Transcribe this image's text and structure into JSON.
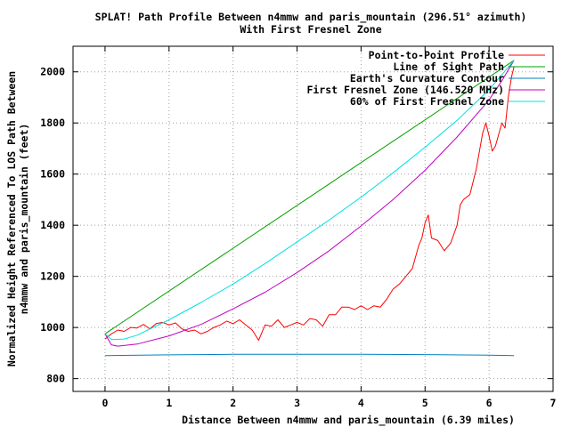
{
  "chart_data": {
    "type": "line",
    "title_line1": "SPLAT! Path Profile Between n4mmw and paris_mountain (296.51° azimuth)",
    "title_line2": "With First Fresnel Zone",
    "xlabel": "Distance Between n4mmw and paris_mountain (6.39 miles)",
    "ylabel_line1": "Normalized Height Referenced To LOS Path Between",
    "ylabel_line2": "n4mmw and paris_mountain (feet)",
    "xlim": [
      -0.5,
      7
    ],
    "ylim": [
      750,
      2100
    ],
    "x_ticks": [
      0,
      1,
      2,
      3,
      4,
      5,
      6,
      7
    ],
    "y_ticks": [
      800,
      1000,
      1200,
      1400,
      1600,
      1800,
      2000
    ],
    "grid": true,
    "legend_position": "top-right",
    "series": [
      {
        "name": "Point-to-Point Profile",
        "color": "#ff0000",
        "points": [
          [
            0,
            955
          ],
          [
            0.1,
            975
          ],
          [
            0.2,
            990
          ],
          [
            0.3,
            985
          ],
          [
            0.4,
            1000
          ],
          [
            0.5,
            998
          ],
          [
            0.6,
            1012
          ],
          [
            0.7,
            995
          ],
          [
            0.8,
            1015
          ],
          [
            0.9,
            1020
          ],
          [
            1.0,
            1010
          ],
          [
            1.1,
            1018
          ],
          [
            1.2,
            995
          ],
          [
            1.3,
            985
          ],
          [
            1.4,
            990
          ],
          [
            1.5,
            975
          ],
          [
            1.6,
            985
          ],
          [
            1.7,
            1000
          ],
          [
            1.8,
            1010
          ],
          [
            1.9,
            1025
          ],
          [
            2.0,
            1015
          ],
          [
            2.1,
            1030
          ],
          [
            2.2,
            1010
          ],
          [
            2.3,
            990
          ],
          [
            2.4,
            950
          ],
          [
            2.5,
            1010
          ],
          [
            2.6,
            1005
          ],
          [
            2.7,
            1030
          ],
          [
            2.8,
            1000
          ],
          [
            2.9,
            1010
          ],
          [
            3.0,
            1020
          ],
          [
            3.1,
            1010
          ],
          [
            3.2,
            1035
          ],
          [
            3.3,
            1030
          ],
          [
            3.4,
            1005
          ],
          [
            3.5,
            1050
          ],
          [
            3.6,
            1050
          ],
          [
            3.7,
            1080
          ],
          [
            3.8,
            1080
          ],
          [
            3.9,
            1070
          ],
          [
            4.0,
            1085
          ],
          [
            4.1,
            1070
          ],
          [
            4.2,
            1085
          ],
          [
            4.3,
            1080
          ],
          [
            4.4,
            1110
          ],
          [
            4.5,
            1150
          ],
          [
            4.6,
            1170
          ],
          [
            4.7,
            1200
          ],
          [
            4.8,
            1230
          ],
          [
            4.9,
            1320
          ],
          [
            4.95,
            1350
          ],
          [
            5.0,
            1410
          ],
          [
            5.05,
            1440
          ],
          [
            5.1,
            1350
          ],
          [
            5.2,
            1340
          ],
          [
            5.3,
            1300
          ],
          [
            5.4,
            1330
          ],
          [
            5.5,
            1400
          ],
          [
            5.55,
            1480
          ],
          [
            5.6,
            1500
          ],
          [
            5.7,
            1520
          ],
          [
            5.8,
            1620
          ],
          [
            5.9,
            1760
          ],
          [
            5.95,
            1800
          ],
          [
            6.0,
            1750
          ],
          [
            6.05,
            1690
          ],
          [
            6.1,
            1710
          ],
          [
            6.2,
            1800
          ],
          [
            6.25,
            1780
          ],
          [
            6.3,
            1900
          ],
          [
            6.35,
            1980
          ],
          [
            6.39,
            2020
          ]
        ]
      },
      {
        "name": "Line of Sight Path",
        "color": "#00a000",
        "points": [
          [
            0,
            975
          ],
          [
            6.39,
            2045
          ]
        ]
      },
      {
        "name": "Earth's Curvature Contour",
        "color": "#0080c0",
        "points": [
          [
            0,
            890
          ],
          [
            1.0,
            893
          ],
          [
            2.0,
            895
          ],
          [
            3.0,
            895
          ],
          [
            4.0,
            895
          ],
          [
            5.0,
            894
          ],
          [
            6.0,
            892
          ],
          [
            6.39,
            890
          ]
        ]
      },
      {
        "name": "First Fresnel Zone (146.520 MHz)",
        "color": "#c000c0",
        "points": [
          [
            0,
            975
          ],
          [
            0.1,
            932
          ],
          [
            0.2,
            927
          ],
          [
            0.5,
            935
          ],
          [
            1.0,
            967
          ],
          [
            1.5,
            1012
          ],
          [
            2.0,
            1073
          ],
          [
            2.5,
            1138
          ],
          [
            3.0,
            1215
          ],
          [
            3.5,
            1300
          ],
          [
            4.0,
            1397
          ],
          [
            4.5,
            1500
          ],
          [
            5.0,
            1615
          ],
          [
            5.5,
            1745
          ],
          [
            6.0,
            1890
          ],
          [
            6.2,
            1965
          ],
          [
            6.39,
            2045
          ]
        ]
      },
      {
        "name": "60% of First Fresnel Zone",
        "color": "#00e0e0",
        "points": [
          [
            0,
            975
          ],
          [
            0.1,
            953
          ],
          [
            0.3,
            955
          ],
          [
            0.5,
            970
          ],
          [
            1.0,
            1030
          ],
          [
            1.5,
            1098
          ],
          [
            2.0,
            1170
          ],
          [
            2.5,
            1250
          ],
          [
            3.0,
            1335
          ],
          [
            3.5,
            1420
          ],
          [
            4.0,
            1510
          ],
          [
            4.5,
            1605
          ],
          [
            5.0,
            1705
          ],
          [
            5.5,
            1810
          ],
          [
            6.0,
            1930
          ],
          [
            6.39,
            2045
          ]
        ]
      }
    ]
  }
}
